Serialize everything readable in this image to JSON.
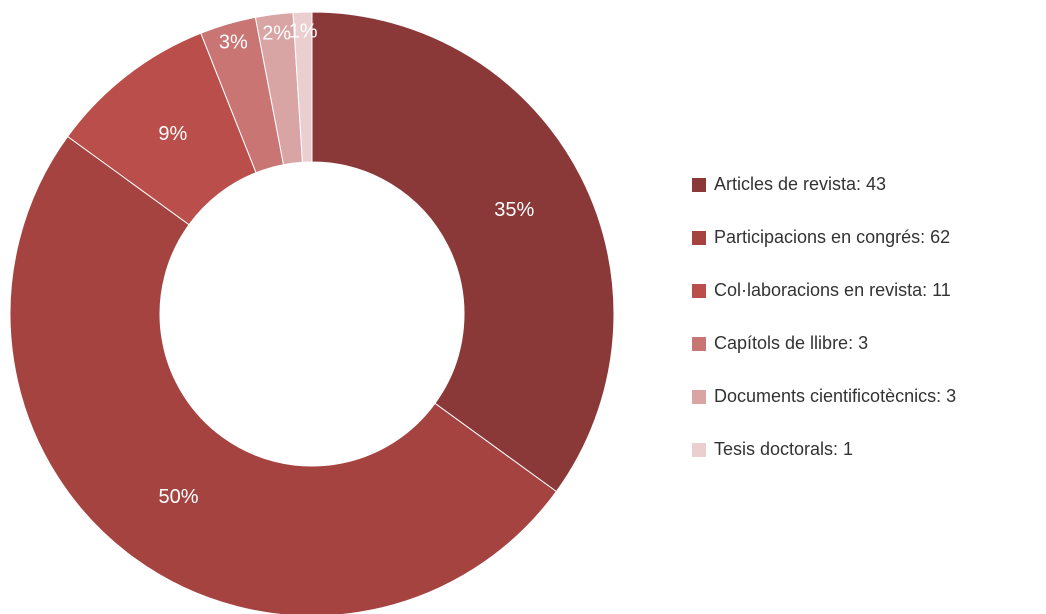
{
  "chart_data": {
    "type": "pie",
    "hole": true,
    "categories": [
      "Articles de revista: 43",
      "Participacions en congrés: 62",
      "Col·laboracions en revista: 11",
      "Capítols de llibre: 3",
      "Documents cientificotècnics: 3",
      "Tesis doctorals: 1"
    ],
    "values": [
      35,
      50,
      9,
      3,
      2,
      1
    ],
    "value_labels": [
      "35%",
      "50%",
      "9%",
      "3%",
      "2%",
      "1%"
    ],
    "colors": [
      "#8b3838",
      "#a54341",
      "#b94e4b",
      "#c97573",
      "#d9a4a4",
      "#ebcfd0"
    ],
    "legend": "right"
  }
}
